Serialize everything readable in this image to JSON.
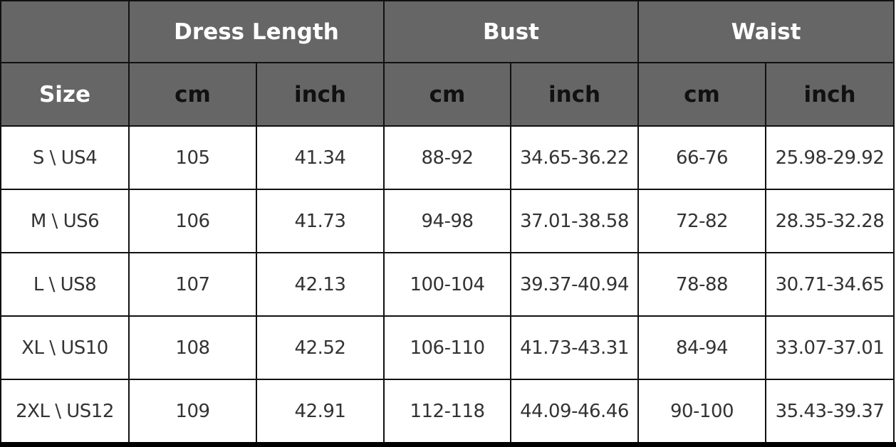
{
  "groups": [
    "Dress Length",
    "Bust",
    "Waist"
  ],
  "size_label": "Size",
  "units": [
    "cm",
    "inch",
    "cm",
    "inch",
    "cm",
    "inch"
  ],
  "rows": [
    [
      "S \\ US4",
      "105",
      "41.34",
      "88-92",
      "34.65-36.22",
      "66-76",
      "25.98-29.92"
    ],
    [
      "M \\ US6",
      "106",
      "41.73",
      "94-98",
      "37.01-38.58",
      "72-82",
      "28.35-32.28"
    ],
    [
      "L \\ US8",
      "107",
      "42.13",
      "100-104",
      "39.37-40.94",
      "78-88",
      "30.71-34.65"
    ],
    [
      "XL \\ US10",
      "108",
      "42.52",
      "106-110",
      "41.73-43.31",
      "84-94",
      "33.07-37.01"
    ],
    [
      "2XL \\ US12",
      "109",
      "42.91",
      "112-118",
      "44.09-46.46",
      "90-100",
      "35.43-39.37"
    ]
  ],
  "colors": {
    "header_bg": "#666666",
    "header_text": "#ffffff",
    "border": "#111111"
  }
}
